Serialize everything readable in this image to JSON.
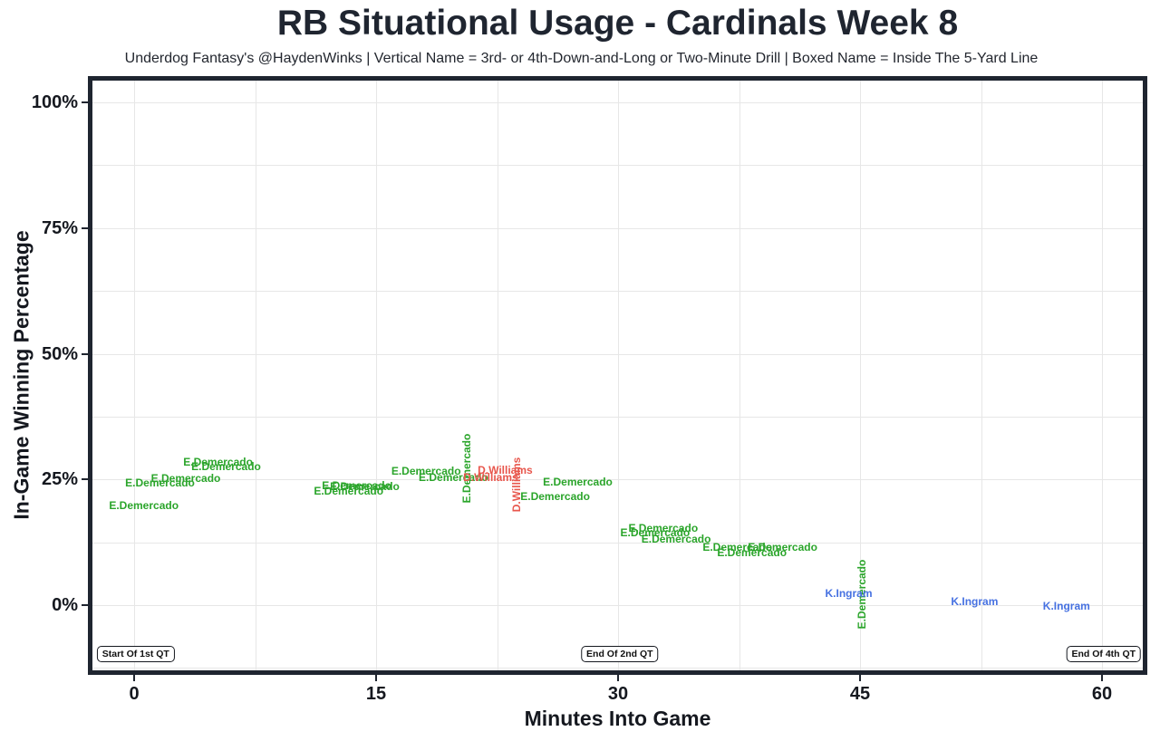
{
  "chart_data": {
    "type": "scatter",
    "title": "RB Situational Usage - Cardinals Week 8",
    "subtitle": "Underdog Fantasy's @HaydenWinks | Vertical Name = 3rd- or 4th-Down-and-Long or Two-Minute Drill | Boxed Name = Inside The 5-Yard Line",
    "xlabel": "Minutes Into Game",
    "ylabel": "In-Game Winning Percentage",
    "xlim": [
      -2.7,
      62.6
    ],
    "ylim": [
      -13.3,
      104.7
    ],
    "grid": {
      "on": true,
      "x_interval": 7.5,
      "y_interval": 12.5,
      "color": "#e7e7e7"
    },
    "legend_position": "none",
    "x_ticks": [
      {
        "value": 0,
        "label": "0"
      },
      {
        "value": 15,
        "label": "15"
      },
      {
        "value": 30,
        "label": "30"
      },
      {
        "value": 45,
        "label": "45"
      },
      {
        "value": 60,
        "label": "60"
      }
    ],
    "y_ticks": [
      {
        "value": 0,
        "label": "0%"
      },
      {
        "value": 25,
        "label": "25%"
      },
      {
        "value": 50,
        "label": "50%"
      },
      {
        "value": 75,
        "label": "75%"
      },
      {
        "value": 100,
        "label": "100%"
      }
    ],
    "point_style": "player-name-text-labels",
    "series": [
      {
        "name": "E.Demercado",
        "color": "#2ba52b",
        "points": [
          {
            "x": 5.2,
            "y": 28.5
          },
          {
            "x": 5.7,
            "y": 27.6
          },
          {
            "x": 3.2,
            "y": 25.2
          },
          {
            "x": 1.6,
            "y": 24.3
          },
          {
            "x": 0.6,
            "y": 19.8
          },
          {
            "x": 13.8,
            "y": 23.8
          },
          {
            "x": 14.3,
            "y": 23.6
          },
          {
            "x": 13.3,
            "y": 22.7
          },
          {
            "x": 18.1,
            "y": 26.7
          },
          {
            "x": 19.8,
            "y": 25.4
          },
          {
            "x": 20.6,
            "y": 27.2,
            "rot": true
          },
          {
            "x": 27.5,
            "y": 24.5
          },
          {
            "x": 26.1,
            "y": 21.6
          },
          {
            "x": 32.8,
            "y": 15.3
          },
          {
            "x": 32.3,
            "y": 14.4
          },
          {
            "x": 33.6,
            "y": 13.2
          },
          {
            "x": 37.4,
            "y": 11.5
          },
          {
            "x": 40.2,
            "y": 11.5
          },
          {
            "x": 38.3,
            "y": 10.5
          },
          {
            "x": 45.1,
            "y": 2.2,
            "rot": true
          }
        ]
      },
      {
        "name": "D.Williams",
        "color": "#e8564c",
        "points": [
          {
            "x": 23.0,
            "y": 26.8
          },
          {
            "x": 22.1,
            "y": 25.4
          },
          {
            "x": 23.7,
            "y": 24.0,
            "rot": true
          }
        ]
      },
      {
        "name": "K.Ingram",
        "color": "#4671e1",
        "points": [
          {
            "x": 44.3,
            "y": 2.3
          },
          {
            "x": 52.1,
            "y": 0.7
          },
          {
            "x": 57.8,
            "y": -0.2
          }
        ]
      }
    ],
    "annotations": [
      {
        "label": "Start Of 1st QT",
        "x": 0.1,
        "y": -9.7
      },
      {
        "label": "End Of 2nd QT",
        "x": 30.1,
        "y": -9.7
      },
      {
        "label": "End Of 4th QT",
        "x": 60.1,
        "y": -9.7
      }
    ]
  }
}
